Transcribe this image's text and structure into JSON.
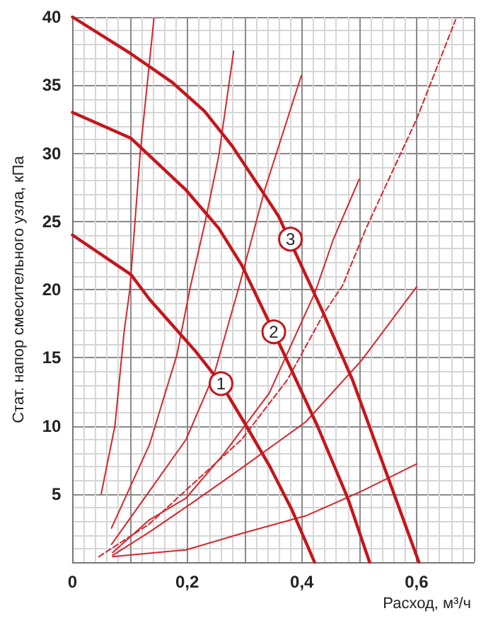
{
  "chart_data": {
    "type": "line",
    "xlabel": "Расход, м³/ч",
    "ylabel": "Стат. напор смесительного узла, кПа",
    "xlim": [
      0,
      0.7
    ],
    "ylim": [
      0,
      40
    ],
    "xticks": [
      0,
      {
        "value": 0.1,
        "label": null
      },
      {
        "value": 0.2,
        "label": "0,2"
      },
      {
        "value": 0.3,
        "label": null
      },
      {
        "value": 0.4,
        "label": "0,4"
      },
      {
        "value": 0.5,
        "label": null
      },
      {
        "value": 0.6,
        "label": "0,6"
      },
      {
        "value": 0.7,
        "label": null
      }
    ],
    "yticks": [
      {
        "value": 0,
        "label": null
      },
      5,
      10,
      15,
      20,
      25,
      30,
      35,
      40
    ],
    "grid": true,
    "marker": "none",
    "series": [
      {
        "color": "#c4161c",
        "x": [
          0,
          0.102,
          0.174,
          0.23,
          0.279,
          0.331,
          0.359,
          0.435,
          0.488,
          0.552,
          0.604
        ],
        "values": [
          40,
          37.3,
          35.2,
          33.1,
          30.5,
          27.2,
          25.4,
          18.5,
          13.4,
          6.0,
          0
        ]
      },
      {
        "color": "#c4161c",
        "x": [
          0,
          0.102,
          0.198,
          0.255,
          0.295,
          0.351,
          0.427,
          0.48,
          0.518
        ],
        "values": [
          33,
          31.1,
          27.3,
          24.5,
          21.8,
          16.9,
          10,
          4.7,
          0
        ]
      },
      {
        "color": "#c4161c",
        "x": [
          0,
          0.102,
          0.134,
          0.214,
          0.259,
          0.303,
          0.343,
          0.383,
          0.422
        ],
        "values": [
          24,
          21.1,
          19.3,
          15.5,
          13.1,
          10,
          7.1,
          3.8,
          0
        ]
      },
      {
        "color": "#d7262e",
        "x": [
          0.05,
          0.074,
          0.09,
          0.1,
          0.118,
          0.142
        ],
        "values": [
          5,
          10,
          16.9,
          20,
          30,
          39.9
        ]
      },
      {
        "color": "#d7262e",
        "x": [
          0.068,
          0.134,
          0.182,
          0.206,
          0.231,
          0.255,
          0.281
        ],
        "values": [
          2.5,
          8.6,
          15.2,
          20.3,
          24.9,
          29.8,
          37.5
        ]
      },
      {
        "color": "#d7262e",
        "x": [
          0.068,
          0.134,
          0.198,
          0.247,
          0.291,
          0.335,
          0.399
        ],
        "values": [
          1.3,
          5.2,
          9,
          13.8,
          20.3,
          27.3,
          35.7
        ]
      },
      {
        "color": "#d7262e",
        "x": [
          0.07,
          0.134,
          0.198,
          0.263,
          0.343,
          0.423,
          0.455,
          0.5
        ],
        "values": [
          0.7,
          3.1,
          4.7,
          7.9,
          12.4,
          19.8,
          23.7,
          28.1
        ]
      },
      {
        "color": "#d7262e",
        "line_style": "dashed",
        "x": [
          0.046,
          0.134,
          0.214,
          0.295,
          0.375,
          0.439,
          0.471,
          0.512,
          0.6,
          0.668
        ],
        "values": [
          0.4,
          2.8,
          5.9,
          9,
          13.4,
          18.3,
          20.3,
          24.5,
          32.5,
          39.8
        ]
      },
      {
        "color": "#d7262e",
        "x": [
          0.07,
          0.134,
          0.214,
          0.295,
          0.407,
          0.504,
          0.6
        ],
        "values": [
          0.5,
          2.2,
          4.5,
          6.9,
          10.3,
          14.8,
          20.2
        ]
      },
      {
        "color": "#d7262e",
        "x": [
          0.07,
          0.198,
          0.295,
          0.407,
          0.504,
          0.6
        ],
        "values": [
          0.4,
          0.9,
          2.1,
          3.4,
          5.2,
          7.2
        ]
      }
    ],
    "annotations": [
      {
        "text": "1",
        "x": 0.259,
        "y": 13.1
      },
      {
        "text": "2",
        "x": 0.351,
        "y": 16.9
      },
      {
        "text": "3",
        "x": 0.38,
        "y": 23.7
      }
    ]
  }
}
